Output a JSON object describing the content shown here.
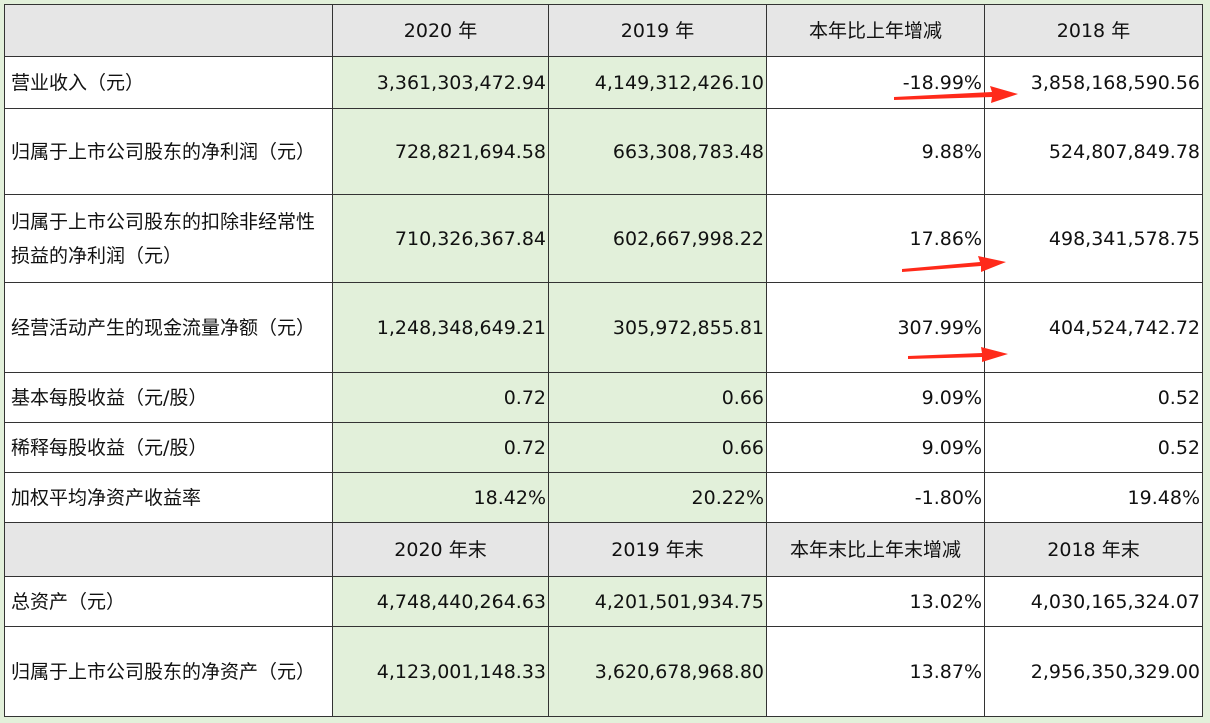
{
  "headers": {
    "first": [
      "2020 年",
      "2019 年",
      "本年比上年增减",
      "2018 年"
    ],
    "second": [
      "2020 年末",
      "2019 年末",
      "本年末比上年末增减",
      "2018 年末"
    ]
  },
  "rows": [
    {
      "label": "营业收入（元）",
      "v2020": "3,361,303,472.94",
      "v2019": "4,149,312,426.10",
      "change": "-18.99%",
      "v2018": "3,858,168,590.56"
    },
    {
      "label": "归属于上市公司股东的净利润（元）",
      "v2020": "728,821,694.58",
      "v2019": "663,308,783.48",
      "change": "9.88%",
      "v2018": "524,807,849.78"
    },
    {
      "label": "归属于上市公司股东的扣除非经常性损益的净利润（元）",
      "v2020": "710,326,367.84",
      "v2019": "602,667,998.22",
      "change": "17.86%",
      "v2018": "498,341,578.75"
    },
    {
      "label": "经营活动产生的现金流量净额（元）",
      "v2020": "1,248,348,649.21",
      "v2019": "305,972,855.81",
      "change": "307.99%",
      "v2018": "404,524,742.72"
    },
    {
      "label": "基本每股收益（元/股）",
      "v2020": "0.72",
      "v2019": "0.66",
      "change": "9.09%",
      "v2018": "0.52"
    },
    {
      "label": "稀释每股收益（元/股）",
      "v2020": "0.72",
      "v2019": "0.66",
      "change": "9.09%",
      "v2018": "0.52"
    },
    {
      "label": "加权平均净资产收益率",
      "v2020": "18.42%",
      "v2019": "20.22%",
      "change": "-1.80%",
      "v2018": "19.48%"
    }
  ],
  "rows2": [
    {
      "label": "总资产（元）",
      "v2020": "4,748,440,264.63",
      "v2019": "4,201,501,934.75",
      "change": "13.02%",
      "v2018": "4,030,165,324.07"
    },
    {
      "label": "归属于上市公司股东的净资产（元）",
      "v2020": "4,123,001,148.33",
      "v2019": "3,620,678,968.80",
      "change": "13.87%",
      "v2018": "2,956,350,329.00"
    }
  ],
  "annotation": {
    "arrow_color": "#ff2a1a"
  }
}
